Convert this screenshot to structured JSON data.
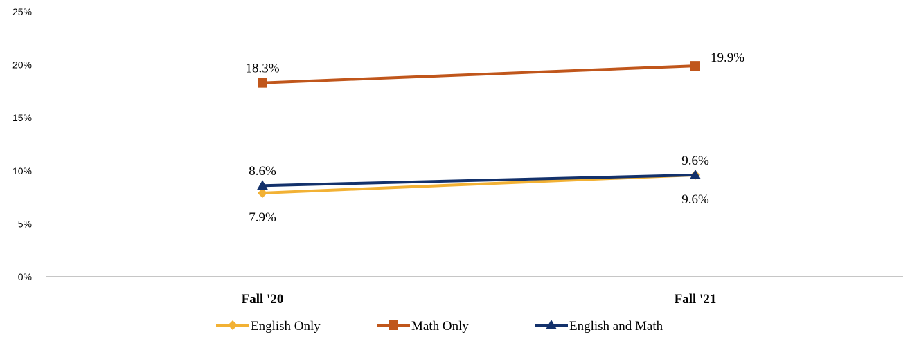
{
  "chart_data": {
    "type": "line",
    "title": "",
    "xlabel": "",
    "ylabel": "",
    "categories": [
      "Fall '20",
      "Fall '21"
    ],
    "ylim": [
      0,
      25
    ],
    "yticks": [
      "0%",
      "5%",
      "10%",
      "15%",
      "20%",
      "25%"
    ],
    "grid": false,
    "legend_position": "bottom",
    "series": [
      {
        "name": "English Only",
        "values": [
          7.9,
          9.6
        ],
        "labels": [
          "7.9%",
          "9.6%"
        ],
        "color": "#f2b134",
        "marker": "diamond",
        "label_side": [
          "below",
          "below"
        ]
      },
      {
        "name": "Math Only",
        "values": [
          18.3,
          19.9
        ],
        "labels": [
          "18.3%",
          "19.9%"
        ],
        "color": "#c0561b",
        "marker": "square",
        "label_side": [
          "above",
          "right"
        ]
      },
      {
        "name": "English and Math",
        "values": [
          8.6,
          9.6
        ],
        "labels": [
          "8.6%",
          "9.6%"
        ],
        "color": "#13316b",
        "marker": "triangle",
        "label_side": [
          "above",
          "above"
        ]
      }
    ]
  }
}
